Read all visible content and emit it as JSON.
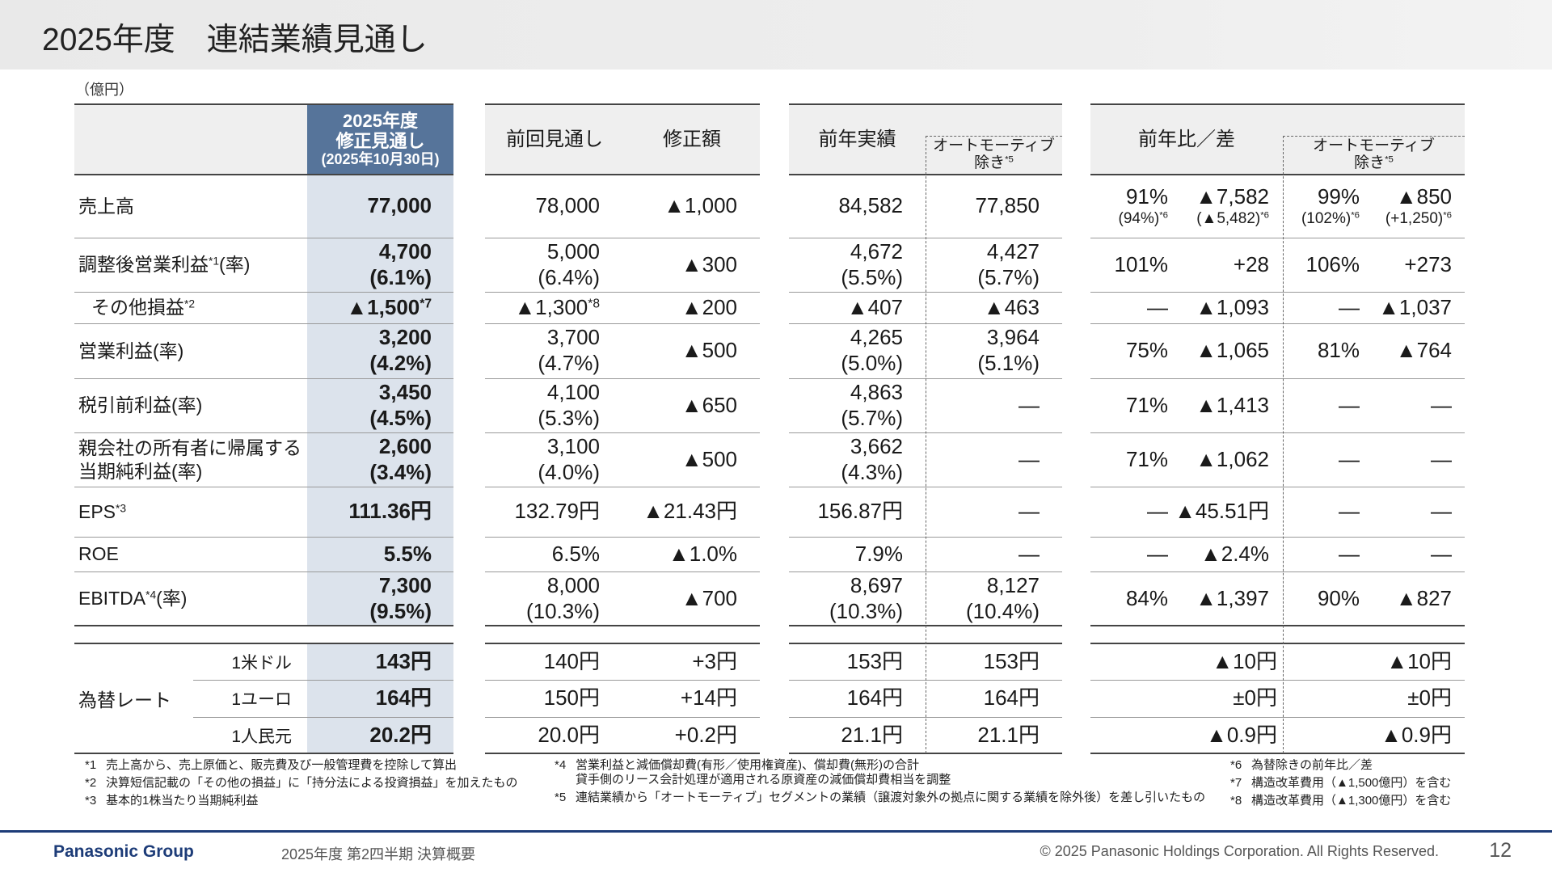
{
  "header": {
    "title": "2025年度　連結業績見通し"
  },
  "unit": "（億円）",
  "table": {
    "column_headers": {
      "forecast": [
        "2025年度",
        "修正見通し",
        "(2025年10月30日)"
      ],
      "previous": [
        "前回見通し"
      ],
      "revision": [
        "修正額"
      ],
      "last_year": [
        "前年実績"
      ],
      "last_year_ex_auto": [
        "オートモーティブ",
        [
          "除き",
          {
            "sup": "*5"
          }
        ]
      ],
      "yoy": [
        "前年比／差"
      ],
      "yoy_ex_auto": [
        "オートモーティブ",
        [
          "除き",
          {
            "sup": "*5"
          }
        ]
      ]
    },
    "rows": [
      {
        "label": [
          "売上高"
        ],
        "cells": [
          [
            "77,000"
          ],
          [
            "78,000"
          ],
          [
            "▲1,000"
          ],
          [
            "84,582"
          ],
          [
            "77,850"
          ],
          [
            "91%",
            [
              "(94%)",
              {
                "sup": "*6"
              }
            ]
          ],
          [
            "▲7,582",
            [
              "(▲5,482)",
              {
                "sup": "*6"
              }
            ]
          ],
          [
            "99%",
            [
              "(102%)",
              {
                "sup": "*6"
              }
            ]
          ],
          [
            "▲850",
            [
              "(+1,250)",
              {
                "sup": "*6"
              }
            ]
          ]
        ]
      },
      {
        "label": [
          [
            "調整後営業利益",
            {
              "sup": "*1"
            },
            "(率)"
          ]
        ],
        "cells": [
          [
            "4,700",
            "(6.1%)"
          ],
          [
            "5,000",
            "(6.4%)"
          ],
          [
            "▲300"
          ],
          [
            "4,672",
            "(5.5%)"
          ],
          [
            "4,427",
            "(5.7%)"
          ],
          [
            "101%"
          ],
          [
            "+28"
          ],
          [
            "106%"
          ],
          [
            "+273"
          ]
        ]
      },
      {
        "label": [
          [
            "その他損益",
            {
              "sup": "*2"
            }
          ]
        ],
        "cells": [
          [
            [
              "▲1,500",
              {
                "sup": "*7"
              }
            ]
          ],
          [
            [
              "▲1,300",
              {
                "sup": "*8"
              }
            ]
          ],
          [
            "▲200"
          ],
          [
            "▲407"
          ],
          [
            "▲463"
          ],
          [
            "―"
          ],
          [
            "▲1,093"
          ],
          [
            "―"
          ],
          [
            "▲1,037"
          ]
        ]
      },
      {
        "label": [
          "営業利益(率)"
        ],
        "cells": [
          [
            "3,200",
            "(4.2%)"
          ],
          [
            "3,700",
            "(4.7%)"
          ],
          [
            "▲500"
          ],
          [
            "4,265",
            "(5.0%)"
          ],
          [
            "3,964",
            "(5.1%)"
          ],
          [
            "75%"
          ],
          [
            "▲1,065"
          ],
          [
            "81%"
          ],
          [
            "▲764"
          ]
        ]
      },
      {
        "label": [
          "税引前利益(率)"
        ],
        "cells": [
          [
            "3,450",
            "(4.5%)"
          ],
          [
            "4,100",
            "(5.3%)"
          ],
          [
            "▲650"
          ],
          [
            "4,863",
            "(5.7%)"
          ],
          [
            "―"
          ],
          [
            "71%"
          ],
          [
            "▲1,413"
          ],
          [
            "―"
          ],
          [
            "―"
          ]
        ]
      },
      {
        "label": [
          "親会社の所有者に帰属する",
          "当期純利益(率)"
        ],
        "cells": [
          [
            "2,600",
            "(3.4%)"
          ],
          [
            "3,100",
            "(4.0%)"
          ],
          [
            "▲500"
          ],
          [
            "3,662",
            "(4.3%)"
          ],
          [
            "―"
          ],
          [
            "71%"
          ],
          [
            "▲1,062"
          ],
          [
            "―"
          ],
          [
            "―"
          ]
        ]
      },
      {
        "label": [
          [
            "EPS",
            {
              "sup": "*3"
            }
          ]
        ],
        "cells": [
          [
            "111.36円"
          ],
          [
            "132.79円"
          ],
          [
            "▲21.43円"
          ],
          [
            "156.87円"
          ],
          [
            "―"
          ],
          [
            "―"
          ],
          [
            "▲45.51円"
          ],
          [
            "―"
          ],
          [
            "―"
          ]
        ]
      },
      {
        "label": [
          "ROE"
        ],
        "cells": [
          [
            "5.5%"
          ],
          [
            "6.5%"
          ],
          [
            "▲1.0%"
          ],
          [
            "7.9%"
          ],
          [
            "―"
          ],
          [
            "―"
          ],
          [
            "▲2.4%"
          ],
          [
            "―"
          ],
          [
            "―"
          ]
        ]
      },
      {
        "label": [
          [
            "EBITDA",
            {
              "sup": "*4"
            },
            "(率)"
          ]
        ],
        "cells": [
          [
            "7,300",
            "(9.5%)"
          ],
          [
            "8,000",
            "(10.3%)"
          ],
          [
            "▲700"
          ],
          [
            "8,697",
            "(10.3%)"
          ],
          [
            "8,127",
            "(10.4%)"
          ],
          [
            "84%"
          ],
          [
            "▲1,397"
          ],
          [
            "90%"
          ],
          [
            "▲827"
          ]
        ]
      }
    ]
  },
  "fx": {
    "label": "為替レート",
    "rows": [
      {
        "currency": "1米ドル",
        "cells": [
          [
            "143円"
          ],
          [
            "140円"
          ],
          [
            "+3円"
          ],
          [
            "153円"
          ],
          [
            "153円"
          ],
          null,
          [
            "▲10円"
          ],
          null,
          [
            "▲10円"
          ]
        ]
      },
      {
        "currency": "1ユーロ",
        "cells": [
          [
            "164円"
          ],
          [
            "150円"
          ],
          [
            "+14円"
          ],
          [
            "164円"
          ],
          [
            "164円"
          ],
          null,
          [
            "±0円"
          ],
          null,
          [
            "±0円"
          ]
        ]
      },
      {
        "currency": "1人民元",
        "cells": [
          [
            "20.2円"
          ],
          [
            "20.0円"
          ],
          [
            "+0.2円"
          ],
          [
            "21.1円"
          ],
          [
            "21.1円"
          ],
          null,
          [
            "▲0.9円"
          ],
          null,
          [
            "▲0.9円"
          ]
        ]
      }
    ]
  },
  "footnotes": [
    [
      {
        "mark": "*1",
        "lines": [
          "売上高から、売上原価と、販売費及び一般管理費を控除して算出"
        ]
      },
      {
        "mark": "*2",
        "lines": [
          "決算短信記載の「その他の損益」に「持分法による投資損益」を加えたもの"
        ]
      },
      {
        "mark": "*3",
        "lines": [
          "基本的1株当たり当期純利益"
        ]
      }
    ],
    [
      {
        "mark": "*4",
        "lines": [
          "営業利益と減価償却費(有形／使用権資産)、償却費(無形)の合計",
          "貸手側のリース会計処理が適用される原資産の減価償却費相当を調整"
        ]
      },
      {
        "mark": "*5",
        "lines": [
          "連結業績から「オートモーティブ」セグメントの業績（譲渡対象外の拠点に関する業績を除外後）を差し引いたもの"
        ]
      }
    ],
    [
      {
        "mark": "*6",
        "lines": [
          "為替除きの前年比／差"
        ]
      },
      {
        "mark": "*7",
        "lines": [
          "構造改革費用（▲1,500億円）を含む"
        ]
      },
      {
        "mark": "*8",
        "lines": [
          "構造改革費用（▲1,300億円）を含む"
        ]
      }
    ]
  ],
  "footer": {
    "brand": "Panasonic Group",
    "subtitle": "2025年度 第2四半期 決算概要",
    "copyright": "© 2025 Panasonic Holdings Corporation. All Rights Reserved.",
    "page": "12"
  }
}
